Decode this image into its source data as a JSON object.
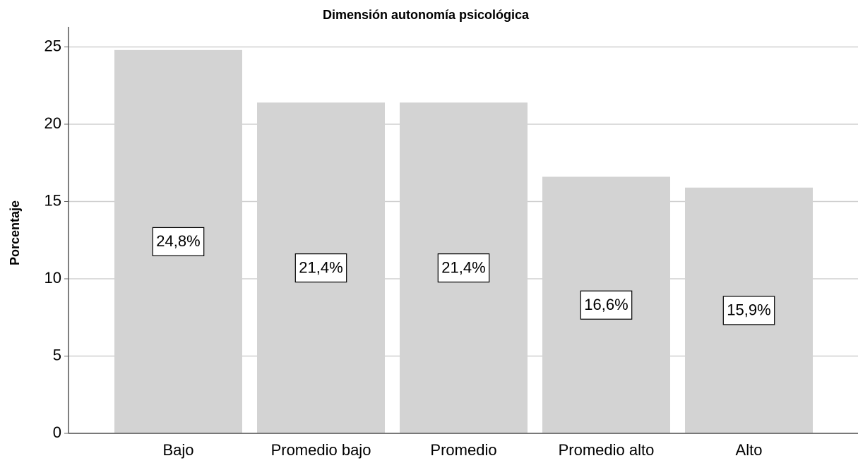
{
  "chart_data": {
    "type": "bar",
    "title": "Dimensión autonomía psicológica",
    "y_label": "Porcentaje",
    "categories": [
      "Bajo",
      "Promedio bajo",
      "Promedio",
      "Promedio alto",
      "Alto"
    ],
    "values": [
      24.8,
      21.4,
      21.4,
      16.6,
      15.9
    ],
    "value_labels": [
      "24,8%",
      "21,4%",
      "21,4%",
      "16,6%",
      "15,9%"
    ],
    "color": "#d3d3d3",
    "ylim": [
      0,
      26.3
    ],
    "yticks": [
      0,
      5,
      10,
      15,
      20,
      25
    ],
    "grid": true
  }
}
